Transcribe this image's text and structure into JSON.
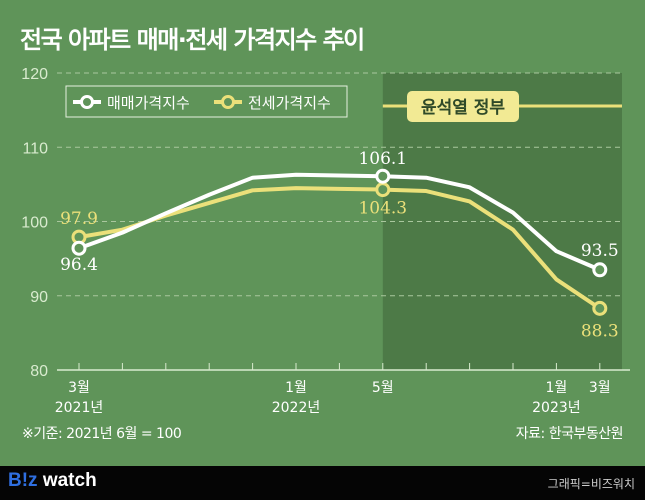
{
  "title": "전국 아파트 매매·전세 가격지수 추이",
  "chart_data": {
    "type": "line",
    "x": [
      "2021-03",
      "2021-05",
      "2021-07",
      "2021-09",
      "2021-11",
      "2022-01",
      "2022-03",
      "2022-05",
      "2022-07",
      "2022-09",
      "2022-11",
      "2023-01",
      "2023-03"
    ],
    "x_tick_labels": [
      {
        "index": 0,
        "month": "3월",
        "year": "2021년"
      },
      {
        "index": 5,
        "month": "1월",
        "year": "2022년"
      },
      {
        "index": 7,
        "month": "5월",
        "year": ""
      },
      {
        "index": 11,
        "month": "1월",
        "year": "2023년"
      },
      {
        "index": 12,
        "month": "3월",
        "year": ""
      }
    ],
    "ylim": [
      80,
      120
    ],
    "y_ticks": [
      80,
      90,
      100,
      110,
      120
    ],
    "grid": true,
    "legend_position": "top-left",
    "series": [
      {
        "name": "매매가격지수",
        "color": "#ffffff",
        "values": [
          96.4,
          98.5,
          101.1,
          103.6,
          105.9,
          106.3,
          106.2,
          106.1,
          105.9,
          104.6,
          101.2,
          96.0,
          93.5
        ]
      },
      {
        "name": "전세가격지수",
        "color": "#ebe07a",
        "values": [
          97.9,
          98.9,
          100.8,
          102.5,
          104.2,
          104.5,
          104.4,
          104.3,
          104.1,
          102.7,
          98.9,
          92.2,
          88.3
        ]
      }
    ],
    "labels": [
      {
        "series": 0,
        "index": 0,
        "text": "96.4"
      },
      {
        "series": 1,
        "index": 0,
        "text": "97.9"
      },
      {
        "series": 0,
        "index": 7,
        "text": "106.1"
      },
      {
        "series": 1,
        "index": 7,
        "text": "104.3"
      },
      {
        "series": 0,
        "index": 12,
        "text": "93.5"
      },
      {
        "series": 1,
        "index": 12,
        "text": "88.3"
      }
    ],
    "shaded_region": {
      "from_index": 7,
      "label": "윤석열 정부",
      "color": "#4d7a47"
    }
  },
  "notes": {
    "base": "※기준: 2021년 6월 = 100",
    "source": "자료: 한국부동산원"
  },
  "footer": {
    "logo_b": "B!z",
    "logo_rest": " watch",
    "credit": "그래픽=비즈워치"
  }
}
